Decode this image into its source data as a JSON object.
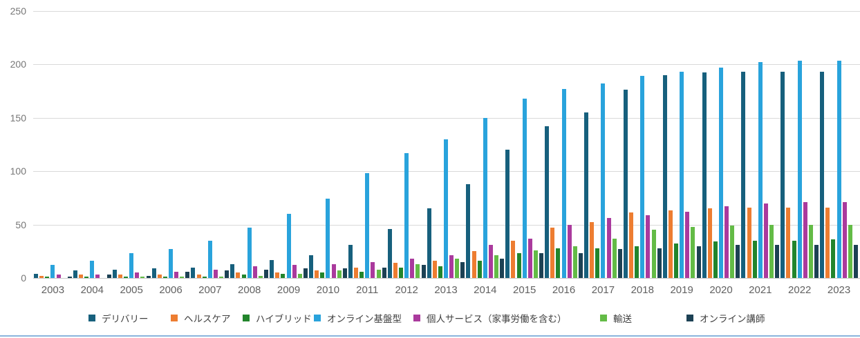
{
  "chart_data": {
    "type": "bar",
    "title": "",
    "xlabel": "",
    "ylabel": "",
    "categories": [
      "2003",
      "2004",
      "2005",
      "2006",
      "2007",
      "2008",
      "2009",
      "2010",
      "2011",
      "2012",
      "2013",
      "2014",
      "2015",
      "2016",
      "2017",
      "2018",
      "2019",
      "2020",
      "2021",
      "2022",
      "2023"
    ],
    "series": [
      {
        "name": "デリバリー",
        "color": "#17607d",
        "values": [
          4,
          7,
          8,
          9,
          10,
          13,
          17,
          21,
          31,
          46,
          65,
          88,
          120,
          142,
          155,
          176,
          190,
          192,
          193,
          193,
          193
        ]
      },
      {
        "name": "ヘルスケア",
        "color": "#ed7d31",
        "values": [
          2,
          3,
          3,
          3,
          3,
          5,
          5,
          7,
          10,
          14,
          16,
          25,
          35,
          47,
          52,
          61,
          63,
          65,
          66,
          66,
          66
        ]
      },
      {
        "name": "ハイブリッド",
        "color": "#22852c",
        "values": [
          1,
          1,
          1,
          1,
          1,
          3,
          4,
          5,
          6,
          10,
          11,
          16,
          23,
          28,
          28,
          30,
          32,
          34,
          35,
          35,
          36
        ]
      },
      {
        "name": "オンライン基盤型",
        "color": "#29a3dc",
        "values": [
          12,
          16,
          23,
          27,
          35,
          47,
          60,
          74,
          98,
          117,
          130,
          150,
          168,
          177,
          182,
          189,
          193,
          197,
          202,
          203,
          203
        ]
      },
      {
        "name": "個人サービス（家事労働を含む）",
        "color": "#aa3a9d",
        "values": [
          3,
          3,
          5,
          6,
          8,
          11,
          12,
          13,
          15,
          18,
          21,
          31,
          37,
          50,
          56,
          59,
          62,
          67,
          70,
          71,
          71
        ]
      },
      {
        "name": "輸送",
        "color": "#63bb46",
        "values": [
          0,
          0,
          1,
          1,
          1,
          2,
          4,
          7,
          8,
          13,
          18,
          21,
          26,
          30,
          37,
          45,
          48,
          49,
          50,
          50,
          50
        ]
      },
      {
        "name": "オンライン講師",
        "color": "#1c4154",
        "values": [
          1,
          3,
          2,
          6,
          7,
          8,
          9,
          9,
          10,
          12,
          15,
          18,
          23,
          23,
          27,
          28,
          30,
          31,
          31,
          31,
          31
        ]
      }
    ],
    "ylim": [
      0,
      250
    ],
    "yticks": [
      0,
      50,
      100,
      150,
      200,
      250
    ],
    "grid": true,
    "legend_position": "bottom",
    "legend_x_positions": [
      128,
      247,
      351,
      454,
      598,
      868,
      993
    ]
  },
  "style_colors": {
    "grid": "#d9d9d9",
    "axis_text": "#6b6b6b",
    "bottom_rule": "#8ab3dc"
  }
}
